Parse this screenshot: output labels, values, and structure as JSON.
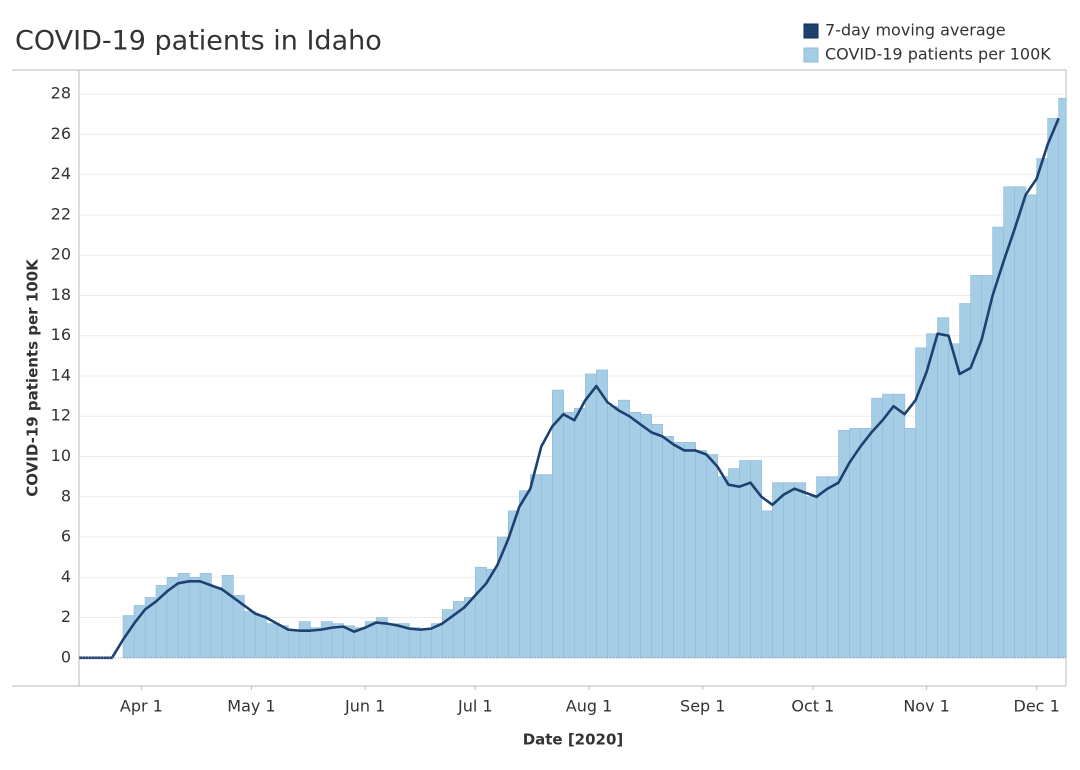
{
  "chart_data": {
    "type": "area",
    "title": "COVID-19 patients in Idaho",
    "x_label": "Date [2020]",
    "y_label": "COVID-19 patients per 100K",
    "x": [
      "2020-03-15",
      "2020-03-18",
      "2020-03-21",
      "2020-03-24",
      "2020-03-27",
      "2020-03-30",
      "2020-04-02",
      "2020-04-05",
      "2020-04-08",
      "2020-04-11",
      "2020-04-14",
      "2020-04-17",
      "2020-04-20",
      "2020-04-23",
      "2020-04-26",
      "2020-04-29",
      "2020-05-02",
      "2020-05-05",
      "2020-05-08",
      "2020-05-11",
      "2020-05-14",
      "2020-05-17",
      "2020-05-20",
      "2020-05-23",
      "2020-05-26",
      "2020-05-29",
      "2020-06-01",
      "2020-06-04",
      "2020-06-07",
      "2020-06-10",
      "2020-06-13",
      "2020-06-16",
      "2020-06-19",
      "2020-06-22",
      "2020-06-25",
      "2020-06-28",
      "2020-07-01",
      "2020-07-04",
      "2020-07-07",
      "2020-07-10",
      "2020-07-13",
      "2020-07-16",
      "2020-07-19",
      "2020-07-22",
      "2020-07-25",
      "2020-07-28",
      "2020-07-31",
      "2020-08-03",
      "2020-08-06",
      "2020-08-09",
      "2020-08-12",
      "2020-08-15",
      "2020-08-18",
      "2020-08-21",
      "2020-08-24",
      "2020-08-27",
      "2020-08-30",
      "2020-09-02",
      "2020-09-05",
      "2020-09-08",
      "2020-09-11",
      "2020-09-14",
      "2020-09-17",
      "2020-09-20",
      "2020-09-23",
      "2020-09-26",
      "2020-09-29",
      "2020-10-02",
      "2020-10-05",
      "2020-10-08",
      "2020-10-11",
      "2020-10-14",
      "2020-10-17",
      "2020-10-20",
      "2020-10-23",
      "2020-10-26",
      "2020-10-29",
      "2020-11-01",
      "2020-11-04",
      "2020-11-07",
      "2020-11-10",
      "2020-11-13",
      "2020-11-16",
      "2020-11-19",
      "2020-11-22",
      "2020-11-25",
      "2020-11-28",
      "2020-12-01",
      "2020-12-04",
      "2020-12-07"
    ],
    "series": [
      {
        "name": "7-day moving average",
        "color": "#1f4170",
        "style": "line",
        "values": [
          0,
          0,
          0,
          0,
          0.9,
          1.7,
          2.4,
          2.8,
          3.3,
          3.7,
          3.8,
          3.8,
          3.6,
          3.4,
          3.0,
          2.6,
          2.2,
          2.0,
          1.7,
          1.4,
          1.35,
          1.35,
          1.4,
          1.5,
          1.55,
          1.3,
          1.5,
          1.75,
          1.7,
          1.6,
          1.45,
          1.4,
          1.45,
          1.7,
          2.1,
          2.5,
          3.1,
          3.7,
          4.6,
          5.9,
          7.5,
          8.4,
          10.5,
          11.5,
          12.1,
          11.8,
          12.8,
          13.5,
          12.7,
          12.3,
          12.0,
          11.6,
          11.2,
          11.0,
          10.6,
          10.3,
          10.3,
          10.1,
          9.5,
          8.6,
          8.5,
          8.7,
          8.0,
          7.6,
          8.1,
          8.4,
          8.2,
          8.0,
          8.4,
          8.7,
          9.7,
          10.5,
          11.2,
          11.8,
          12.5,
          12.1,
          12.8,
          14.2,
          16.1,
          16.0,
          14.1,
          14.4,
          15.8,
          18.0,
          19.7,
          21.3,
          23.0,
          23.8,
          25.5,
          26.8
        ]
      },
      {
        "name": "COVID-19 patients per 100K",
        "color": "#a6cde6",
        "style": "step",
        "values": [
          0,
          0,
          0,
          0,
          2.1,
          2.6,
          3.0,
          3.6,
          4.0,
          4.2,
          4.0,
          4.2,
          3.5,
          4.1,
          3.1,
          2.3,
          2.1,
          1.7,
          1.6,
          1.4,
          1.8,
          1.5,
          1.8,
          1.7,
          1.6,
          1.5,
          1.8,
          2.0,
          1.7,
          1.7,
          1.5,
          1.4,
          1.7,
          2.4,
          2.8,
          3.0,
          4.5,
          4.4,
          6.0,
          7.3,
          8.3,
          9.1,
          9.1,
          13.3,
          12.2,
          12.4,
          14.1,
          14.3,
          12.5,
          12.8,
          12.2,
          12.1,
          11.6,
          11.0,
          10.7,
          10.7,
          10.3,
          10.1,
          9.0,
          9.4,
          9.8,
          9.8,
          7.3,
          8.7,
          8.7,
          8.7,
          8.0,
          9.0,
          9.0,
          11.3,
          11.4,
          11.4,
          12.9,
          13.1,
          13.1,
          11.4,
          15.4,
          16.1,
          16.9,
          15.6,
          17.6,
          19.0,
          19.0,
          21.4,
          23.4,
          23.4,
          23.0,
          24.8,
          26.8,
          27.8
        ]
      }
    ],
    "xlim": [
      "2020-03-15",
      "2020-12-09"
    ],
    "xticks": [
      {
        "value": "2020-04-01",
        "label": "Apr 1"
      },
      {
        "value": "2020-05-01",
        "label": "May 1"
      },
      {
        "value": "2020-06-01",
        "label": "Jun 1"
      },
      {
        "value": "2020-07-01",
        "label": "Jul 1"
      },
      {
        "value": "2020-08-01",
        "label": "Aug 1"
      },
      {
        "value": "2020-09-01",
        "label": "Sep 1"
      },
      {
        "value": "2020-10-01",
        "label": "Oct 1"
      },
      {
        "value": "2020-11-01",
        "label": "Nov 1"
      },
      {
        "value": "2020-12-01",
        "label": "Dec 1"
      }
    ],
    "ylim": [
      -1.4,
      29.2
    ],
    "yticks": [
      0,
      2,
      4,
      6,
      8,
      10,
      12,
      14,
      16,
      18,
      20,
      22,
      24,
      26,
      28
    ],
    "grid": true,
    "legend": "top-right"
  }
}
